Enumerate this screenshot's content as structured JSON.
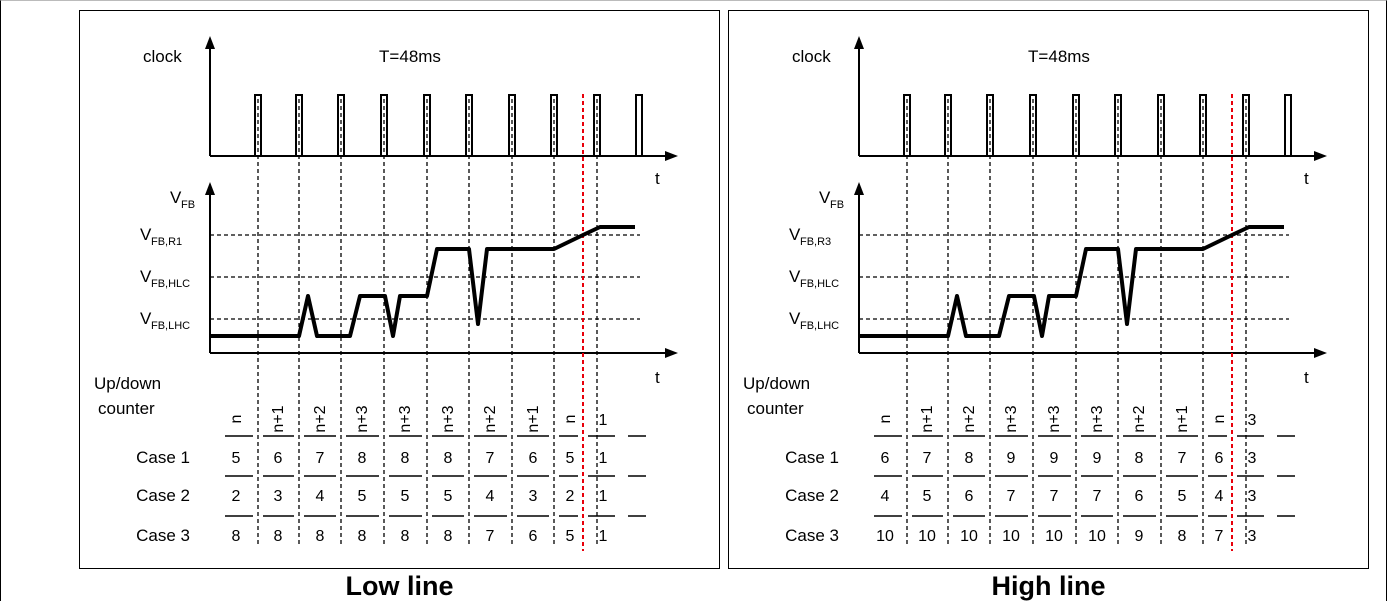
{
  "panels": [
    {
      "id": "low",
      "caption": "Low line",
      "clock_label": "clock",
      "period_label": "T=48ms",
      "time_axis_label": "t",
      "vfb_label": "V",
      "vfb_sub": "FB",
      "levels": [
        {
          "main": "V",
          "sub": "FB,R1"
        },
        {
          "main": "V",
          "sub": "FB,HLC"
        },
        {
          "main": "V",
          "sub": "FB,LHC"
        }
      ],
      "counter_label_line1": "Up/down",
      "counter_label_line2": "counter",
      "counter_values": [
        "n",
        "n+1",
        "n+2",
        "n+3",
        "n+3",
        "n+3",
        "n+2",
        "n+1",
        "n",
        "1"
      ],
      "cases": [
        {
          "label": "Case 1",
          "values": [
            "5",
            "6",
            "7",
            "8",
            "8",
            "8",
            "7",
            "6",
            "5",
            "1"
          ]
        },
        {
          "label": "Case 2",
          "values": [
            "2",
            "3",
            "4",
            "5",
            "5",
            "5",
            "4",
            "3",
            "2",
            "1"
          ]
        },
        {
          "label": "Case 3",
          "values": [
            "8",
            "8",
            "8",
            "8",
            "8",
            "8",
            "7",
            "6",
            "5",
            "1"
          ]
        }
      ]
    },
    {
      "id": "high",
      "caption": "High line",
      "clock_label": "clock",
      "period_label": "T=48ms",
      "time_axis_label": "t",
      "vfb_label": "V",
      "vfb_sub": "FB",
      "levels": [
        {
          "main": "V",
          "sub": "FB,R3"
        },
        {
          "main": "V",
          "sub": "FB,HLC"
        },
        {
          "main": "V",
          "sub": "FB,LHC"
        }
      ],
      "counter_label_line1": "Up/down",
      "counter_label_line2": "counter",
      "counter_values": [
        "n",
        "n+1",
        "n+2",
        "n+3",
        "n+3",
        "n+3",
        "n+2",
        "n+1",
        "n",
        "3"
      ],
      "cases": [
        {
          "label": "Case 1",
          "values": [
            "6",
            "7",
            "8",
            "9",
            "9",
            "9",
            "8",
            "7",
            "6",
            "3"
          ]
        },
        {
          "label": "Case 2",
          "values": [
            "4",
            "5",
            "6",
            "7",
            "7",
            "7",
            "6",
            "5",
            "4",
            "3"
          ]
        },
        {
          "label": "Case 3",
          "values": [
            "10",
            "10",
            "10",
            "10",
            "10",
            "10",
            "9",
            "8",
            "7",
            "3"
          ]
        }
      ]
    }
  ],
  "colors": {
    "line": "#000000",
    "highlight": "#e8000b"
  }
}
